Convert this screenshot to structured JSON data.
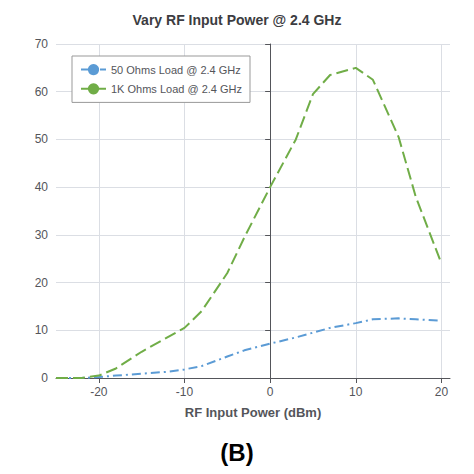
{
  "chart_data": {
    "type": "line",
    "title": "Vary RF Input Power @ 2.4 GHz",
    "xlabel": "RF Input Power (dBm)",
    "annotation": "(B)",
    "x": [
      -25,
      -22,
      -20,
      -18,
      -15,
      -12,
      -10,
      -8,
      -5,
      -3,
      0,
      3,
      5,
      7,
      10,
      12,
      15,
      17,
      20
    ],
    "series": [
      {
        "name": "50 Ohms Load @ 2.4 GHz",
        "color": "#5b9bd5",
        "line_style": "dashdot",
        "values": [
          0.0,
          0.0,
          0.2,
          0.5,
          0.9,
          1.3,
          1.8,
          2.5,
          4.5,
          5.8,
          7.2,
          8.5,
          9.5,
          10.5,
          11.5,
          12.3,
          12.5,
          12.3,
          12.0
        ]
      },
      {
        "name": "1K Ohms Load @ 2.4 GHz",
        "color": "#70ad47",
        "line_style": "dashed",
        "values": [
          0.0,
          0.0,
          0.5,
          2.0,
          5.5,
          8.5,
          10.5,
          14.0,
          22.0,
          29.5,
          40.0,
          50.0,
          59.5,
          63.5,
          65.0,
          62.5,
          50.5,
          38.0,
          24.0
        ]
      }
    ],
    "xlim": [
      -25,
      21
    ],
    "ylim": [
      0,
      70
    ],
    "xticks": [
      -20,
      -10,
      0,
      10,
      20
    ],
    "yticks": [
      0,
      10,
      20,
      30,
      40,
      50,
      60,
      70
    ],
    "grid": true,
    "legend": "upper left"
  }
}
